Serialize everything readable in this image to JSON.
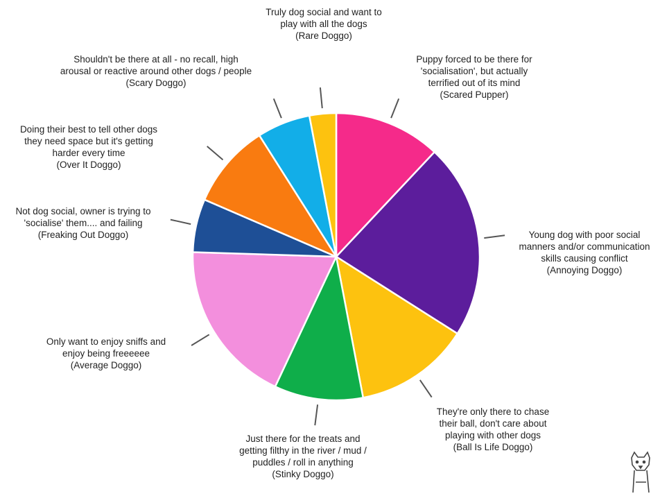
{
  "chart_data": {
    "type": "pie",
    "start": "top",
    "direction": "clockwise",
    "slices": [
      {
        "label": [
          "Puppy forced to be there for",
          "'socialisation', but actually",
          "terrified out of its mind",
          "(Scared Pupper)"
        ],
        "value": 12,
        "color": "#f52a8a"
      },
      {
        "label": [
          "Young dog with poor social",
          "manners and/or communication",
          "skills causing conflict",
          "(Annoying Doggo)"
        ],
        "value": 22,
        "color": "#5c1d9c"
      },
      {
        "label": [
          "They're only there to chase",
          "their ball, don't care about",
          "playing with other dogs",
          "(Ball Is Life Doggo)"
        ],
        "value": 13,
        "color": "#fdc20f"
      },
      {
        "label": [
          "Just there for the treats and",
          "getting filthy in the river / mud /",
          "puddles / roll in anything",
          "(Stinky Doggo)"
        ],
        "value": 10,
        "color": "#0fae4a"
      },
      {
        "label": [
          "Only want to enjoy sniffs and",
          "enjoy being freeeeee",
          "(Average Doggo)"
        ],
        "value": 18.5,
        "color": "#f38fdd"
      },
      {
        "label": [
          "Not dog social, owner is trying to",
          "'socialise' them.... and failing",
          "(Freaking Out Doggo)"
        ],
        "value": 6,
        "color": "#1e4f96"
      },
      {
        "label": [
          "Doing their best to tell other dogs",
          "they need space but it's getting",
          "harder every time",
          "(Over It Doggo)"
        ],
        "value": 9.5,
        "color": "#f97b10"
      },
      {
        "label": [
          "Shouldn't be there at all - no recall, high",
          "arousal or reactive around other dogs / people",
          "(Scary Doggo)"
        ],
        "value": 6,
        "color": "#12aee8"
      },
      {
        "label": [
          "Truly dog social and want to",
          "play with all the dogs",
          "(Rare Doggo)"
        ],
        "value": 3,
        "color": "#fdc20f"
      }
    ]
  }
}
